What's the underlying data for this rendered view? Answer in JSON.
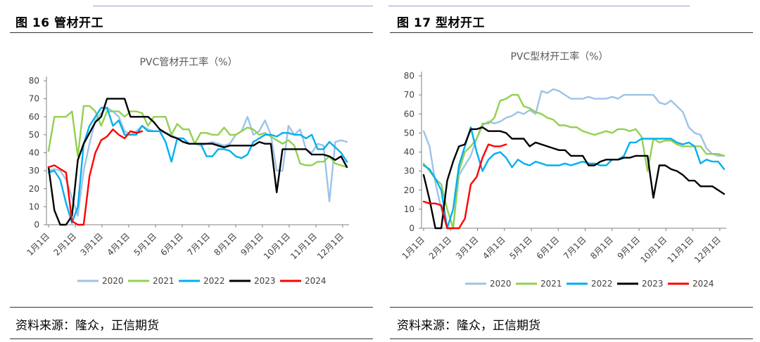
{
  "left_panel": {
    "title": "图 16  管材开工",
    "source": "资料来源：隆众，正信期货"
  },
  "right_panel": {
    "title": "图 17    型材开工",
    "source": "资料来源：隆众，正信期货"
  },
  "chart_data": [
    {
      "type": "line",
      "title": "PVC管材开工率（%）",
      "xlabel": "",
      "ylabel": "",
      "ylim": [
        0,
        80
      ],
      "yticks": [
        0,
        10,
        20,
        30,
        40,
        50,
        60,
        70,
        80
      ],
      "xticks": [
        "1月1日",
        "2月1日",
        "3月1日",
        "4月1日",
        "5月1日",
        "6月1日",
        "7月1日",
        "8月1日",
        "9月1日",
        "10月1日",
        "11月1日",
        "12月1日"
      ],
      "grid": false,
      "legend_position": "bottom",
      "series": [
        {
          "name": "2020",
          "color": "#9dc3e6",
          "x": [
            1,
            2,
            3,
            4,
            5,
            6,
            7,
            8,
            9,
            10,
            11,
            12,
            13,
            14,
            15,
            16,
            17,
            18,
            19,
            20,
            21,
            22,
            23,
            24,
            25,
            26,
            27,
            28,
            29,
            30,
            31,
            32,
            33,
            34,
            35,
            36,
            37,
            38,
            39,
            40,
            41,
            42,
            43,
            44,
            45,
            46,
            47,
            48,
            49,
            50,
            51,
            52
          ],
          "values": [
            30,
            31,
            30,
            25,
            15,
            5,
            30,
            45,
            58,
            62,
            65,
            63,
            60,
            52,
            50,
            52,
            55,
            53,
            52,
            52,
            51,
            50,
            48,
            46,
            45,
            45,
            44,
            45,
            46,
            45,
            44,
            45,
            50,
            52,
            60,
            50,
            52,
            58,
            50,
            30,
            30,
            55,
            50,
            53,
            42,
            40,
            45,
            44,
            13,
            46,
            47,
            46
          ]
        },
        {
          "name": "2021",
          "color": "#92d050",
          "x": [
            1,
            2,
            3,
            4,
            5,
            6,
            7,
            8,
            9,
            10,
            11,
            12,
            13,
            14,
            15,
            16,
            17,
            18,
            19,
            20,
            21,
            22,
            23,
            24,
            25,
            26,
            27,
            28,
            29,
            30,
            31,
            32,
            33,
            34,
            35,
            36,
            37,
            38,
            39,
            40,
            41,
            42,
            43,
            44,
            45,
            46,
            47,
            48,
            49,
            50,
            51,
            52
          ],
          "values": [
            41,
            60,
            60,
            60,
            63,
            38,
            66,
            66,
            63,
            55,
            63,
            63,
            63,
            60,
            63,
            63,
            62,
            55,
            60,
            60,
            60,
            50,
            56,
            53,
            53,
            45,
            51,
            51,
            50,
            50,
            54,
            50,
            50,
            52,
            54,
            53,
            50,
            51,
            49,
            47,
            45,
            47,
            44,
            34,
            33,
            33,
            35,
            35,
            38,
            34,
            33,
            32
          ]
        },
        {
          "name": "2022",
          "color": "#00b0f0",
          "x": [
            1,
            2,
            3,
            4,
            5,
            6,
            7,
            8,
            9,
            10,
            11,
            12,
            13,
            14,
            15,
            16,
            17,
            18,
            19,
            20,
            21,
            22,
            23,
            24,
            25,
            26,
            27,
            28,
            29,
            30,
            31,
            32,
            33,
            34,
            35,
            36,
            37,
            38,
            39,
            40,
            41,
            42,
            43,
            44,
            45,
            46,
            47,
            48,
            49,
            50,
            51,
            52
          ],
          "values": [
            29,
            30,
            25,
            12,
            1,
            10,
            45,
            55,
            60,
            65,
            65,
            55,
            58,
            50,
            50,
            50,
            55,
            52,
            52,
            52,
            46,
            35,
            48,
            48,
            45,
            45,
            45,
            38,
            38,
            42,
            42,
            41,
            38,
            37,
            39,
            46,
            48,
            50,
            50,
            49,
            51,
            51,
            50,
            50,
            48,
            50,
            42,
            42,
            46,
            43,
            40,
            35
          ]
        },
        {
          "name": "2023",
          "color": "#000000",
          "x": [
            1,
            2,
            3,
            4,
            5,
            6,
            7,
            8,
            9,
            10,
            11,
            12,
            13,
            14,
            15,
            16,
            17,
            18,
            19,
            20,
            21,
            22,
            23,
            24,
            25,
            26,
            27,
            28,
            29,
            30,
            31,
            32,
            33,
            34,
            35,
            36,
            37,
            38,
            39,
            40,
            41,
            42,
            43,
            44,
            45,
            46,
            47,
            48,
            49,
            50,
            51,
            52
          ],
          "values": [
            32,
            8,
            0,
            0,
            5,
            36,
            45,
            51,
            57,
            60,
            70,
            70,
            70,
            70,
            60,
            60,
            60,
            60,
            57,
            53,
            51,
            49,
            48,
            46,
            45,
            45,
            45,
            45,
            45,
            44,
            43,
            44,
            44,
            44,
            44,
            44,
            46,
            45,
            45,
            18,
            42,
            42,
            42,
            42,
            42,
            39,
            39,
            39,
            38,
            36,
            38,
            32
          ]
        },
        {
          "name": "2024",
          "color": "#ff0000",
          "x": [
            1,
            2,
            3,
            4,
            5,
            6,
            7,
            8,
            9,
            10,
            11,
            12,
            13,
            14,
            15,
            16,
            17
          ],
          "values": [
            32,
            33,
            31,
            29,
            2,
            0,
            0,
            27,
            40,
            47,
            49,
            53,
            50,
            48,
            52,
            51,
            52
          ]
        }
      ]
    },
    {
      "type": "line",
      "title": "PVC型材开工率（%）",
      "xlabel": "",
      "ylabel": "",
      "ylim": [
        0,
        80
      ],
      "yticks": [
        0,
        10,
        20,
        30,
        40,
        50,
        60,
        70,
        80
      ],
      "xticks": [
        "1月1日",
        "2月1日",
        "3月1日",
        "4月1日",
        "5月1日",
        "6月1日",
        "7月1日",
        "8月1日",
        "9月1日",
        "10月1日",
        "11月1日",
        "12月1日"
      ],
      "grid": false,
      "legend_position": "bottom",
      "series": [
        {
          "name": "2020",
          "color": "#9dc3e6",
          "x": [
            1,
            2,
            3,
            4,
            5,
            6,
            7,
            8,
            9,
            10,
            11,
            12,
            13,
            14,
            15,
            16,
            17,
            18,
            19,
            20,
            21,
            22,
            23,
            24,
            25,
            26,
            27,
            28,
            29,
            30,
            31,
            32,
            33,
            34,
            35,
            36,
            37,
            38,
            39,
            40,
            41,
            42,
            43,
            44,
            45,
            46,
            47,
            48,
            49,
            50,
            51,
            52
          ],
          "values": [
            51,
            43,
            24,
            10,
            0,
            0,
            28,
            33,
            38,
            47,
            54,
            56,
            55,
            56,
            58,
            59,
            61,
            60,
            62,
            60,
            72,
            71,
            73,
            72,
            70,
            68,
            68,
            68,
            69,
            68,
            68,
            68,
            69,
            68,
            70,
            70,
            70,
            70,
            70,
            70,
            66,
            65,
            67,
            64,
            61,
            53,
            50,
            49,
            42,
            39,
            38,
            38
          ]
        },
        {
          "name": "2021",
          "color": "#92d050",
          "x": [
            1,
            2,
            3,
            4,
            5,
            6,
            7,
            8,
            9,
            10,
            11,
            12,
            13,
            14,
            15,
            16,
            17,
            18,
            19,
            20,
            21,
            22,
            23,
            24,
            25,
            26,
            27,
            28,
            29,
            30,
            31,
            32,
            33,
            34,
            35,
            36,
            37,
            38,
            39,
            40,
            41,
            42,
            43,
            44,
            45,
            46,
            47,
            48,
            49,
            50,
            51,
            52
          ],
          "values": [
            34,
            30,
            26,
            23,
            10,
            0,
            30,
            40,
            43,
            47,
            55,
            55,
            58,
            67,
            68,
            70,
            70,
            64,
            63,
            61,
            60,
            58,
            57,
            54,
            54,
            53,
            53,
            51,
            50,
            49,
            50,
            51,
            50,
            52,
            52,
            51,
            52,
            48,
            30,
            47,
            45,
            46,
            46,
            44,
            43,
            43,
            43,
            43,
            39,
            39,
            39,
            38
          ]
        },
        {
          "name": "2022",
          "color": "#00b0f0",
          "x": [
            1,
            2,
            3,
            4,
            5,
            6,
            7,
            8,
            9,
            10,
            11,
            12,
            13,
            14,
            15,
            16,
            17,
            18,
            19,
            20,
            21,
            22,
            23,
            24,
            25,
            26,
            27,
            28,
            29,
            30,
            31,
            32,
            33,
            34,
            35,
            36,
            37,
            38,
            39,
            40,
            41,
            42,
            43,
            44,
            45,
            46,
            47,
            48,
            49,
            50,
            51,
            52
          ],
          "values": [
            33,
            31,
            26,
            20,
            0,
            10,
            33,
            43,
            53,
            40,
            30,
            36,
            39,
            40,
            37,
            32,
            36,
            34,
            33,
            35,
            34,
            33,
            33,
            33,
            34,
            33,
            34,
            35,
            34,
            34,
            33,
            33,
            36,
            36,
            38,
            45,
            45,
            47,
            47,
            47,
            47,
            47,
            47,
            45,
            44,
            45,
            43,
            34,
            36,
            35,
            35,
            31
          ]
        },
        {
          "name": "2023",
          "color": "#000000",
          "x": [
            1,
            2,
            3,
            4,
            5,
            6,
            7,
            8,
            9,
            10,
            11,
            12,
            13,
            14,
            15,
            16,
            17,
            18,
            19,
            20,
            21,
            22,
            23,
            24,
            25,
            26,
            27,
            28,
            29,
            30,
            31,
            32,
            33,
            34,
            35,
            36,
            37,
            38,
            39,
            40,
            41,
            42,
            43,
            44,
            45,
            46,
            47,
            48,
            49,
            50,
            51,
            52
          ],
          "values": [
            28,
            15,
            0,
            0,
            25,
            35,
            43,
            44,
            52,
            52,
            53,
            51,
            51,
            51,
            50,
            47,
            47,
            47,
            43,
            45,
            44,
            43,
            42,
            41,
            41,
            38,
            38,
            38,
            33,
            33,
            35,
            36,
            36,
            36,
            37,
            37,
            38,
            38,
            38,
            16,
            33,
            33,
            31,
            30,
            28,
            25,
            25,
            22,
            22,
            22,
            20,
            18
          ]
        },
        {
          "name": "2024",
          "color": "#ff0000",
          "x": [
            1,
            2,
            3,
            4,
            5,
            6,
            7,
            8,
            9,
            10,
            11,
            12,
            13,
            14,
            15
          ],
          "values": [
            14,
            13,
            13,
            12,
            0,
            0,
            0,
            5,
            23,
            27,
            37,
            44,
            43,
            43,
            44
          ]
        }
      ]
    }
  ]
}
